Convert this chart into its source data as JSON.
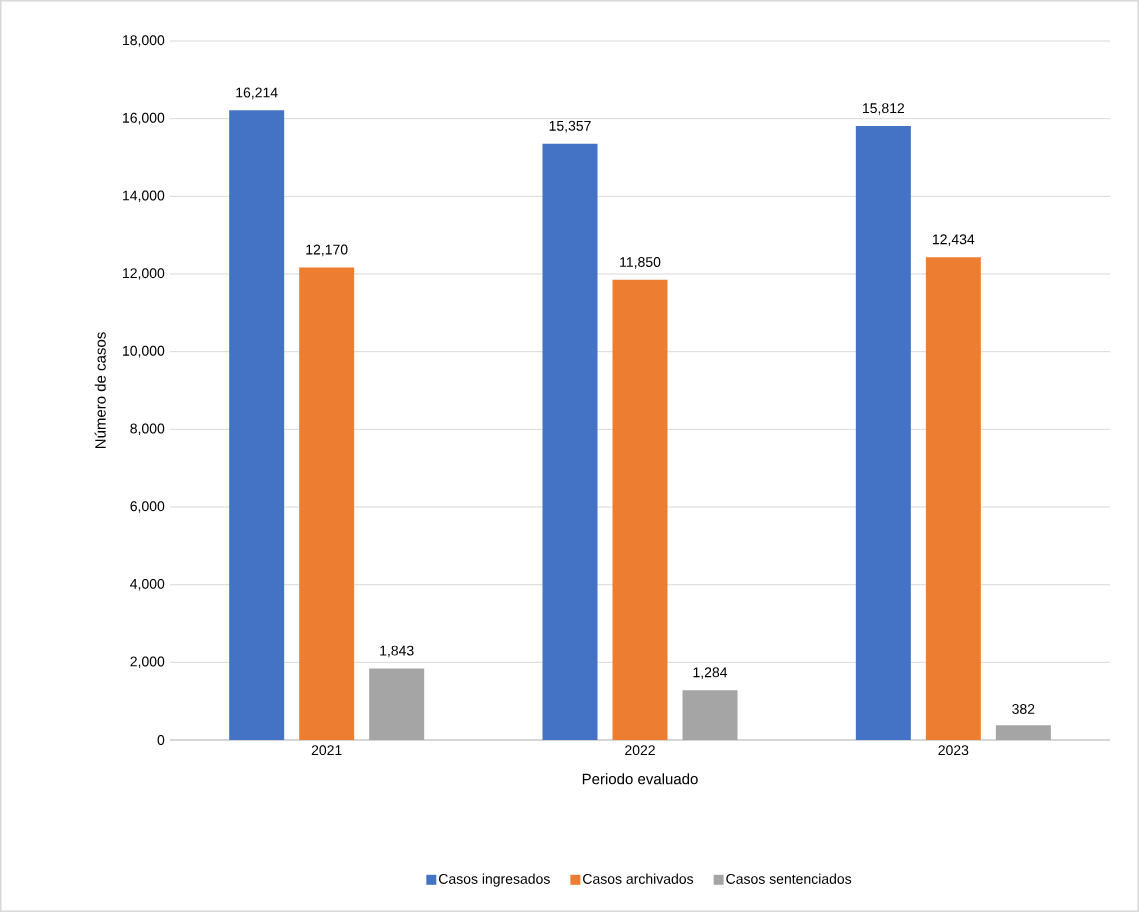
{
  "chart_data": {
    "type": "bar",
    "xlabel": "Periodo evaluado",
    "ylabel": "Número de casos",
    "categories": [
      "2021",
      "2022",
      "2023"
    ],
    "series": [
      {
        "name": "Casos ingresados",
        "color": "#4472c4",
        "values": [
          16214,
          15357,
          15812
        ],
        "value_labels": [
          "16,214",
          "15,357",
          "15,812"
        ]
      },
      {
        "name": "Casos archivados",
        "color": "#ed7d31",
        "values": [
          12170,
          11850,
          12434
        ],
        "value_labels": [
          "12,170",
          "11,850",
          "12,434"
        ]
      },
      {
        "name": "Casos sentenciados",
        "color": "#a5a5a5",
        "values": [
          1843,
          1284,
          382
        ],
        "value_labels": [
          "1,843",
          "1,284",
          "382"
        ]
      }
    ],
    "ylim": [
      0,
      18000
    ],
    "yticks": [
      {
        "value": 0,
        "label": "0"
      },
      {
        "value": 2000,
        "label": "2,000"
      },
      {
        "value": 4000,
        "label": "4,000"
      },
      {
        "value": 6000,
        "label": "6,000"
      },
      {
        "value": 8000,
        "label": "8,000"
      },
      {
        "value": 10000,
        "label": "10,000"
      },
      {
        "value": 12000,
        "label": "12,000"
      },
      {
        "value": 14000,
        "label": "14,000"
      },
      {
        "value": 16000,
        "label": "16,000"
      },
      {
        "value": 18000,
        "label": "18,000"
      }
    ],
    "grid": "y",
    "legend": "bottom"
  }
}
